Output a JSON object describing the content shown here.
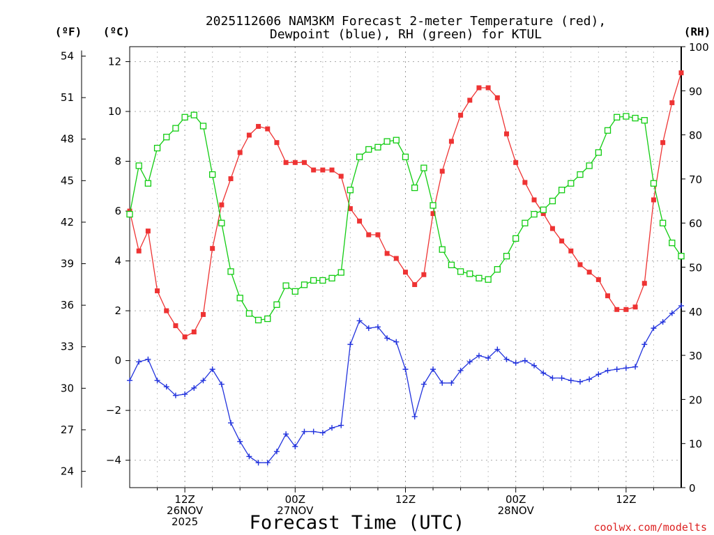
{
  "chart_data": {
    "type": "line",
    "title": "2025112606 NAM3KM Forecast 2-meter Temperature (red),",
    "subtitle": "Dewpoint (blue), RH (green) for KTUL",
    "xlabel": "Forecast Time (UTC)",
    "credit": "coolwx.com/modelts",
    "units": {
      "fahrenheit": "(ºF)",
      "celsius": "(ºC)",
      "rh": "(RH)"
    },
    "x_start_hour": 6,
    "x_step_hours": 1,
    "xlim": [
      6,
      66
    ],
    "x_ticks": [
      {
        "hour": 12,
        "lines": [
          "12Z",
          "26NOV",
          "2025"
        ]
      },
      {
        "hour": 24,
        "lines": [
          "00Z",
          "27NOV"
        ]
      },
      {
        "hour": 36,
        "lines": [
          "12Z"
        ]
      },
      {
        "hour": 48,
        "lines": [
          "00Z",
          "28NOV"
        ]
      },
      {
        "hour": 60,
        "lines": [
          "12Z"
        ]
      }
    ],
    "ylim_c": [
      -5.1,
      12.6
    ],
    "yticks_c": [
      12,
      10,
      8,
      6,
      4,
      2,
      0,
      -2,
      -4
    ],
    "yticks_f": [
      54,
      51,
      48,
      45,
      42,
      39,
      36,
      33,
      30,
      27,
      24
    ],
    "ylim_rh": [
      0,
      100
    ],
    "yticks_rh": [
      100,
      90,
      80,
      70,
      60,
      50,
      40,
      30,
      20,
      10,
      0
    ],
    "grid": true,
    "series": [
      {
        "name": "2-meter Temperature",
        "axis": "c",
        "color": "#ee3333",
        "marker": "filled-square",
        "values": [
          6.0,
          4.4,
          5.2,
          2.8,
          2.0,
          1.4,
          0.95,
          1.15,
          1.85,
          4.5,
          6.25,
          7.3,
          8.35,
          9.05,
          9.4,
          9.3,
          8.75,
          7.95,
          7.95,
          7.95,
          7.65,
          7.65,
          7.65,
          7.4,
          6.1,
          5.6,
          5.05,
          5.05,
          4.3,
          4.1,
          3.55,
          3.05,
          3.45,
          5.9,
          7.6,
          8.8,
          9.85,
          10.45,
          10.95,
          10.95,
          10.55,
          9.1,
          7.95,
          7.15,
          6.45,
          5.9,
          5.3,
          4.8,
          4.4,
          3.85,
          3.55,
          3.25,
          2.6,
          2.05,
          2.05,
          2.15,
          3.1,
          6.45,
          8.75,
          10.35,
          11.55
        ]
      },
      {
        "name": "Dewpoint",
        "axis": "c",
        "color": "#2233dd",
        "marker": "plus",
        "values": [
          -0.8,
          -0.05,
          0.05,
          -0.8,
          -1.05,
          -1.4,
          -1.35,
          -1.1,
          -0.8,
          -0.35,
          -0.95,
          -2.5,
          -3.25,
          -3.85,
          -4.1,
          -4.1,
          -3.65,
          -2.95,
          -3.45,
          -2.85,
          -2.85,
          -2.9,
          -2.7,
          -2.6,
          0.65,
          1.6,
          1.3,
          1.35,
          0.9,
          0.75,
          -0.35,
          -2.25,
          -0.95,
          -0.35,
          -0.9,
          -0.9,
          -0.4,
          -0.05,
          0.2,
          0.1,
          0.45,
          0.05,
          -0.1,
          0.0,
          -0.2,
          -0.5,
          -0.7,
          -0.7,
          -0.8,
          -0.85,
          -0.75,
          -0.55,
          -0.4,
          -0.35,
          -0.3,
          -0.25,
          0.65,
          1.3,
          1.55,
          1.9,
          2.2
        ]
      },
      {
        "name": "RH",
        "axis": "rh",
        "color": "#11cc11",
        "marker": "open-square",
        "values": [
          62,
          73,
          69,
          77,
          79.5,
          81.5,
          84,
          84.5,
          82,
          71,
          60,
          49,
          43,
          39.5,
          38,
          38.3,
          41.5,
          45.8,
          44.5,
          46,
          47,
          47,
          47.5,
          48.8,
          67.5,
          75,
          76.7,
          77.2,
          78.5,
          78.8,
          75,
          68,
          72.5,
          64,
          54,
          50.5,
          49,
          48.5,
          47.5,
          47.2,
          49.5,
          52.5,
          56.5,
          60,
          62,
          63,
          65,
          67.5,
          69,
          71,
          73,
          76,
          81,
          84,
          84.2,
          83.8,
          83.3,
          69,
          60,
          55.5,
          52.5
        ]
      }
    ]
  }
}
